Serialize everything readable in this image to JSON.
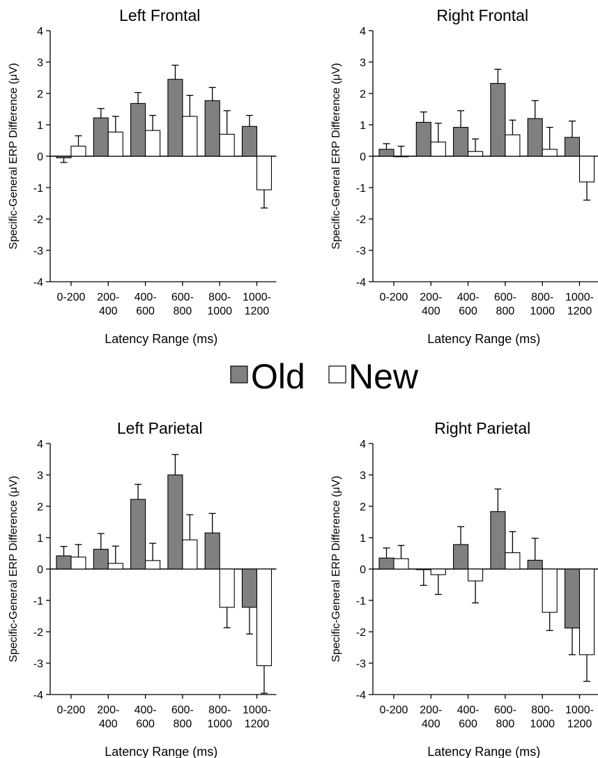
{
  "legend": {
    "items": [
      {
        "label": "Old",
        "color": "#808080"
      },
      {
        "label": "New",
        "color": "#ffffff"
      }
    ],
    "placement": "center"
  },
  "colors": {
    "old": "#808080",
    "new": "#ffffff",
    "stroke": "#000000"
  },
  "chart_data": [
    {
      "type": "bar",
      "title": "Left Frontal",
      "xlabel": "Latency Range (ms)",
      "ylabel": "Specific-General ERP Difference (μV)",
      "ylim": [
        -4,
        4
      ],
      "yticks": [
        "4",
        "3",
        "2",
        "1",
        "0",
        "-1",
        "-2",
        "-3",
        "-4"
      ],
      "categories": [
        [
          "0-200"
        ],
        [
          "200-",
          "400"
        ],
        [
          "400-",
          "600"
        ],
        [
          "600-",
          "800"
        ],
        [
          "800-",
          "1000"
        ],
        [
          "1000-",
          "1200"
        ]
      ],
      "series": [
        {
          "name": "Old",
          "values": [
            -0.05,
            1.22,
            1.68,
            2.45,
            1.77,
            0.95
          ],
          "errors": [
            0.15,
            0.3,
            0.35,
            0.45,
            0.42,
            0.35
          ]
        },
        {
          "name": "New",
          "values": [
            0.32,
            0.77,
            0.82,
            1.27,
            0.7,
            -1.07
          ],
          "errors": [
            0.33,
            0.5,
            0.48,
            0.67,
            0.75,
            0.58
          ]
        }
      ]
    },
    {
      "type": "bar",
      "title": "Right Frontal",
      "xlabel": "Latency Range (ms)",
      "ylabel": "Specific-General ERP Difference (μV)",
      "ylim": [
        -4,
        4
      ],
      "yticks": [
        "4",
        "3",
        "2",
        "1",
        "0",
        "-1",
        "-2",
        "-3",
        "-4"
      ],
      "categories": [
        [
          "0-200"
        ],
        [
          "200-",
          "400"
        ],
        [
          "400-",
          "600"
        ],
        [
          "600-",
          "800"
        ],
        [
          "800-",
          "1000"
        ],
        [
          "1000-",
          "1200"
        ]
      ],
      "series": [
        {
          "name": "Old",
          "values": [
            0.22,
            1.08,
            0.92,
            2.32,
            1.2,
            0.6
          ],
          "errors": [
            0.18,
            0.33,
            0.53,
            0.45,
            0.57,
            0.52
          ]
        },
        {
          "name": "New",
          "values": [
            0.0,
            0.45,
            0.15,
            0.68,
            0.22,
            -0.82
          ],
          "errors": [
            0.32,
            0.6,
            0.4,
            0.47,
            0.7,
            0.58
          ]
        }
      ]
    },
    {
      "type": "bar",
      "title": "Left Parietal",
      "xlabel": "Latency Range (ms)",
      "ylabel": "Specific-General ERP Difference (μV)",
      "ylim": [
        -4,
        4
      ],
      "yticks": [
        "4",
        "3",
        "2",
        "1",
        "0",
        "-1",
        "-2",
        "-3",
        "-4"
      ],
      "categories": [
        [
          "0-200"
        ],
        [
          "200-",
          "400"
        ],
        [
          "400-",
          "600"
        ],
        [
          "600-",
          "800"
        ],
        [
          "800-",
          "1000"
        ],
        [
          "1000-",
          "1200"
        ]
      ],
      "series": [
        {
          "name": "Old",
          "values": [
            0.42,
            0.63,
            2.22,
            3.0,
            1.15,
            -1.22
          ],
          "errors": [
            0.3,
            0.5,
            0.48,
            0.65,
            0.62,
            0.85
          ]
        },
        {
          "name": "New",
          "values": [
            0.38,
            0.18,
            0.27,
            0.93,
            -1.22,
            -3.08
          ],
          "errors": [
            0.4,
            0.55,
            0.55,
            0.8,
            0.65,
            0.88
          ]
        }
      ]
    },
    {
      "type": "bar",
      "title": "Right Parietal",
      "xlabel": "Latency Range (ms)",
      "ylabel": "Specific-General ERP Difference (μV)",
      "ylim": [
        -4,
        4
      ],
      "yticks": [
        "4",
        "3",
        "2",
        "1",
        "0",
        "-1",
        "-2",
        "-3",
        "-4"
      ],
      "categories": [
        [
          "0-200"
        ],
        [
          "200-",
          "400"
        ],
        [
          "400-",
          "600"
        ],
        [
          "600-",
          "800"
        ],
        [
          "800-",
          "1000"
        ],
        [
          "1000-",
          "1200"
        ]
      ],
      "series": [
        {
          "name": "Old",
          "values": [
            0.35,
            -0.02,
            0.78,
            1.83,
            0.28,
            -1.88
          ],
          "errors": [
            0.32,
            0.5,
            0.57,
            0.72,
            0.7,
            0.85
          ]
        },
        {
          "name": "New",
          "values": [
            0.33,
            -0.18,
            -0.38,
            0.52,
            -1.38,
            -2.73
          ],
          "errors": [
            0.42,
            0.63,
            0.7,
            0.67,
            0.58,
            0.85
          ]
        }
      ]
    }
  ]
}
